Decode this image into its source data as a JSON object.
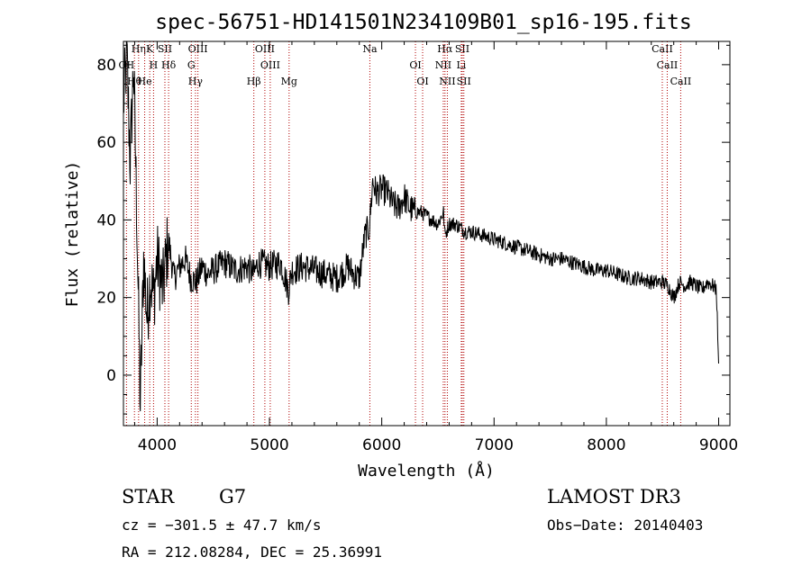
{
  "chart_data": {
    "type": "line",
    "title": "spec-56751-HD141501N234109B01_sp16-195.fits",
    "xlabel": "Wavelength (Å)",
    "ylabel": "Flux (relative)",
    "xlim": [
      3700,
      9100
    ],
    "ylim": [
      -13,
      86
    ],
    "x_ticks": [
      4000,
      5000,
      6000,
      7000,
      8000,
      9000
    ],
    "y_ticks": [
      0,
      20,
      40,
      60,
      80
    ],
    "x_tick_labels": [
      "4000",
      "5000",
      "6000",
      "7000",
      "8000",
      "9000"
    ],
    "y_tick_labels": [
      "0",
      "20",
      "40",
      "60",
      "80"
    ],
    "series": [
      {
        "name": "flux",
        "x": [
          3700,
          3730,
          3760,
          3790,
          3820,
          3850,
          3880,
          3910,
          3940,
          3970,
          4000,
          4050,
          4100,
          4150,
          4200,
          4250,
          4300,
          4350,
          4400,
          4450,
          4500,
          4600,
          4700,
          4800,
          4860,
          4900,
          5000,
          5100,
          5170,
          5200,
          5300,
          5400,
          5500,
          5600,
          5700,
          5750,
          5800,
          5850,
          5890,
          5920,
          5950,
          6000,
          6050,
          6100,
          6150,
          6200,
          6250,
          6300,
          6350,
          6400,
          6450,
          6500,
          6550,
          6563,
          6600,
          6650,
          6700,
          6750,
          6800,
          6900,
          7000,
          7100,
          7200,
          7300,
          7400,
          7500,
          7600,
          7700,
          7800,
          7900,
          8000,
          8100,
          8200,
          8300,
          8400,
          8500,
          8550,
          8600,
          8650,
          8700,
          8750,
          8800,
          8850,
          8900,
          8950,
          8980,
          9000
        ],
        "y": [
          70,
          82,
          55,
          80,
          40,
          -8,
          30,
          15,
          25,
          20,
          30,
          22,
          35,
          25,
          28,
          30,
          25,
          24,
          28,
          26,
          27,
          29,
          27,
          28,
          26,
          29,
          28,
          29,
          22,
          27,
          28,
          27,
          26,
          25,
          28,
          26,
          25,
          36,
          38,
          50,
          47,
          48,
          47,
          44,
          43,
          46,
          43,
          42,
          42,
          41,
          40,
          39,
          42,
          36,
          39,
          39,
          38,
          37,
          37,
          36,
          35,
          34,
          33,
          32,
          31,
          30,
          30,
          29,
          28,
          27,
          27,
          26,
          25,
          25,
          24,
          24,
          23,
          20,
          24,
          23,
          24,
          23,
          22,
          24,
          23,
          22,
          3
        ]
      }
    ],
    "lines": [
      {
        "name": "Hη",
        "x": 3835
      },
      {
        "name": "OII",
        "x": 3727
      },
      {
        "name": "Hθ",
        "x": 3798
      },
      {
        "name": "K",
        "x": 3934
      },
      {
        "name": "Hδ",
        "x": 4102
      },
      {
        "name": "He",
        "x": 3889
      },
      {
        "name": "SII",
        "x": 4069
      },
      {
        "name": "H",
        "x": 3968
      },
      {
        "name": "Hγ",
        "x": 4341
      },
      {
        "name": "OIII",
        "x": 4363
      },
      {
        "name": "G",
        "x": 4304
      },
      {
        "name": "Hβ",
        "x": 4861
      },
      {
        "name": "OIII",
        "x": 4959
      },
      {
        "name": "OIII",
        "x": 5007
      },
      {
        "name": "Mg",
        "x": 5175
      },
      {
        "name": "Na",
        "x": 5894
      },
      {
        "name": "OI",
        "x": 6300
      },
      {
        "name": "OI",
        "x": 6364
      },
      {
        "name": "Hα",
        "x": 6563
      },
      {
        "name": "NII",
        "x": 6548
      },
      {
        "name": "NII",
        "x": 6584
      },
      {
        "name": "SII",
        "x": 6717
      },
      {
        "name": "Li",
        "x": 6708
      },
      {
        "name": "SII",
        "x": 6731
      },
      {
        "name": "CaII",
        "x": 8498
      },
      {
        "name": "CaII",
        "x": 8542
      },
      {
        "name": "CaII",
        "x": 8662
      }
    ]
  },
  "info": {
    "class": "STAR",
    "subclass": "G7",
    "survey": "LAMOST DR3",
    "cz": "cz = −301.5 ± 47.7 km/s",
    "obs_date": "Obs−Date: 20140403",
    "radec": "RA = 212.08284, DEC =  25.36991"
  }
}
